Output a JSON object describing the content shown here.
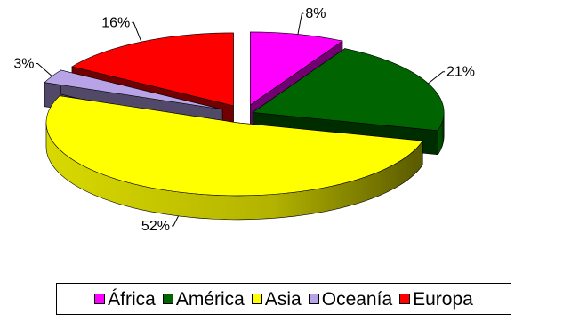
{
  "chart_data": {
    "type": "pie",
    "style": "3d-exploded",
    "categories": [
      "África",
      "América",
      "Asia",
      "Oceanía",
      "Europa"
    ],
    "values": [
      8,
      21,
      52,
      3,
      16
    ],
    "data_labels": [
      "8%",
      "21%",
      "52%",
      "3%",
      "16%"
    ],
    "colors": [
      "#ff00ff",
      "#006400",
      "#ffff00",
      "#b7a3e6",
      "#ff0000"
    ],
    "legend_position": "bottom"
  },
  "legend": {
    "items": [
      {
        "label": "África",
        "color": "#ff00ff"
      },
      {
        "label": "América",
        "color": "#006400"
      },
      {
        "label": "Asia",
        "color": "#ffff00"
      },
      {
        "label": "Oceanía",
        "color": "#b7a3e6"
      },
      {
        "label": "Europa",
        "color": "#ff0000"
      }
    ]
  }
}
